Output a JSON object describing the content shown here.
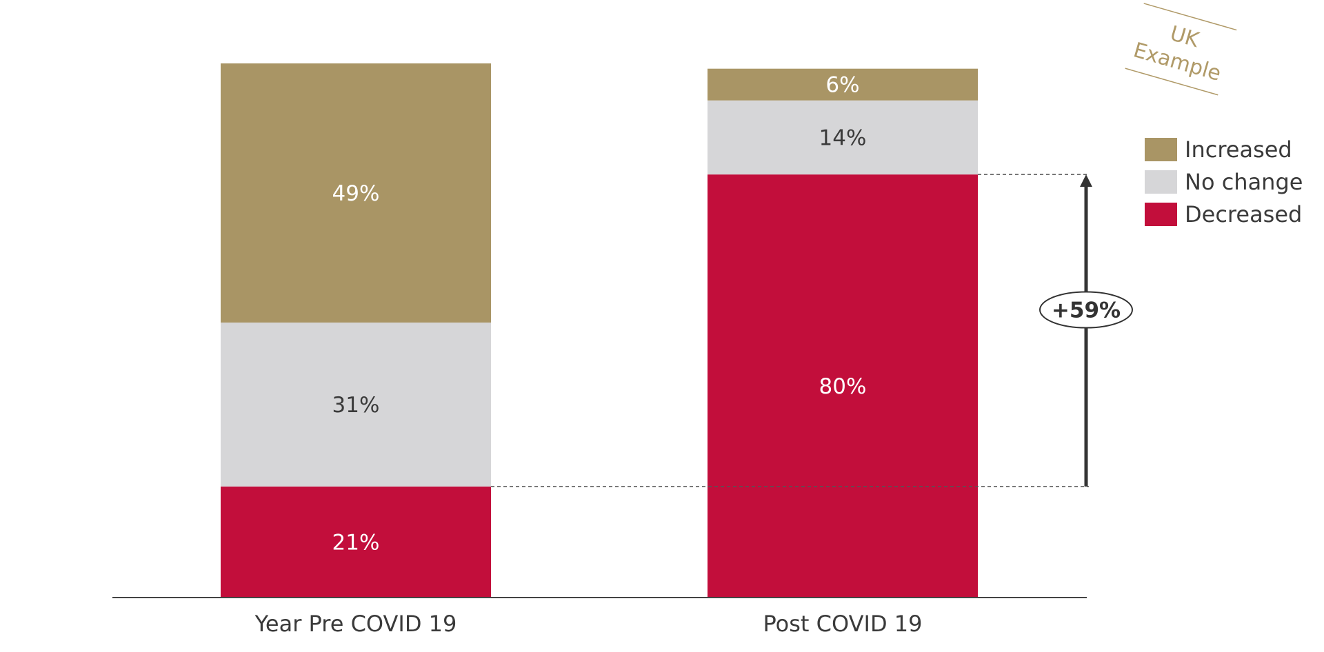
{
  "chart_data": {
    "type": "bar",
    "stacked": true,
    "categories": [
      "Year Pre COVID 19",
      "Post COVID 19"
    ],
    "series": [
      {
        "name": "Decreased",
        "values": [
          21,
          80
        ],
        "color": "#c20e3b",
        "label_color": "#ffffff"
      },
      {
        "name": "No change",
        "values": [
          31,
          14
        ],
        "color": "#d6d6d8",
        "label_color": "#3a3a3a"
      },
      {
        "name": "Increased",
        "values": [
          49,
          6
        ],
        "color": "#a99565",
        "label_color": "#ffffff"
      }
    ],
    "value_suffix": "%",
    "ylim": [
      0,
      101
    ],
    "grid": false,
    "legend_position": "right",
    "legend_order": [
      "Increased",
      "No change",
      "Decreased"
    ],
    "annotation": {
      "text": "+59%",
      "from": {
        "category": "Year Pre COVID 19",
        "value": 21
      },
      "to": {
        "category": "Post COVID 19",
        "value": 80
      }
    },
    "stamp": {
      "lines": [
        "UK",
        "Example"
      ]
    }
  }
}
